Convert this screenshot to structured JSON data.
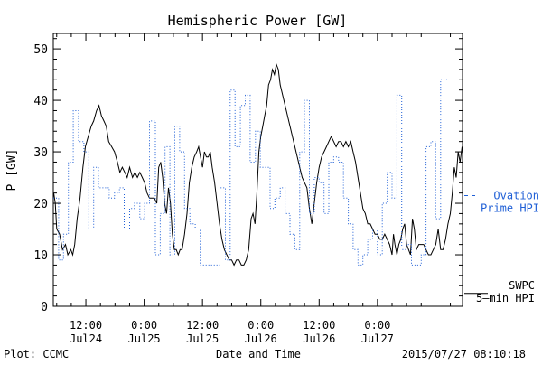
{
  "chart_data": {
    "type": "line",
    "title": "Hemispheric Power [GW]",
    "ylabel": "P [GW]",
    "xlabel": "Date and Time",
    "ylim": [
      0,
      53
    ],
    "yticks": [
      0,
      10,
      20,
      30,
      40,
      50
    ],
    "x_unit": "hours from 2015-07-24 00:00 UT",
    "xlim": [
      5.3,
      89.5
    ],
    "xticks": [
      {
        "x": 12,
        "top": "12:00",
        "bottom": "Jul24"
      },
      {
        "x": 24,
        "top": "0:00",
        "bottom": "Jul25"
      },
      {
        "x": 36,
        "top": "12:00",
        "bottom": "Jul25"
      },
      {
        "x": 48,
        "top": "0:00",
        "bottom": "Jul26"
      },
      {
        "x": 60,
        "top": "12:00",
        "bottom": "Jul26"
      },
      {
        "x": 72,
        "top": "0:00",
        "bottom": "Jul27"
      }
    ],
    "series": [
      {
        "name": "SWPC 5-min HPI",
        "legend_lines": [
          "SWPC",
          "5–min HPI"
        ],
        "color": "#000000",
        "style": "solid",
        "legend_end_value": 2.5,
        "points": [
          [
            5.4,
            22
          ],
          [
            5.7,
            20
          ],
          [
            6.0,
            15
          ],
          [
            6.6,
            14
          ],
          [
            7.2,
            11
          ],
          [
            7.8,
            12
          ],
          [
            8.3,
            10
          ],
          [
            8.9,
            11
          ],
          [
            9.3,
            10
          ],
          [
            9.7,
            12
          ],
          [
            10.2,
            17
          ],
          [
            10.8,
            21
          ],
          [
            11.4,
            27
          ],
          [
            11.9,
            31
          ],
          [
            12.5,
            33
          ],
          [
            13.1,
            35
          ],
          [
            13.6,
            36
          ],
          [
            14.2,
            38
          ],
          [
            14.7,
            39
          ],
          [
            15.2,
            37
          ],
          [
            15.7,
            36
          ],
          [
            16.2,
            35
          ],
          [
            16.7,
            32
          ],
          [
            17.3,
            31
          ],
          [
            17.9,
            30
          ],
          [
            18.5,
            28
          ],
          [
            19.0,
            26
          ],
          [
            19.5,
            27
          ],
          [
            20.0,
            26
          ],
          [
            20.5,
            25
          ],
          [
            21.0,
            27
          ],
          [
            21.6,
            25
          ],
          [
            22.1,
            26
          ],
          [
            22.6,
            25
          ],
          [
            23.1,
            26
          ],
          [
            23.6,
            25
          ],
          [
            24.1,
            24
          ],
          [
            24.6,
            22
          ],
          [
            25.1,
            21
          ],
          [
            25.6,
            21
          ],
          [
            26.1,
            21
          ],
          [
            26.6,
            20
          ],
          [
            27.0,
            27
          ],
          [
            27.4,
            28
          ],
          [
            27.8,
            25
          ],
          [
            28.2,
            20
          ],
          [
            28.6,
            18
          ],
          [
            29.0,
            23
          ],
          [
            29.4,
            20
          ],
          [
            29.8,
            14
          ],
          [
            30.2,
            11
          ],
          [
            30.6,
            11
          ],
          [
            31.0,
            10
          ],
          [
            31.4,
            11
          ],
          [
            31.8,
            11
          ],
          [
            32.3,
            14
          ],
          [
            32.8,
            18
          ],
          [
            33.3,
            24
          ],
          [
            33.8,
            27
          ],
          [
            34.3,
            29
          ],
          [
            34.8,
            30
          ],
          [
            35.2,
            31
          ],
          [
            35.6,
            29
          ],
          [
            36.0,
            27
          ],
          [
            36.4,
            30
          ],
          [
            36.8,
            29
          ],
          [
            37.2,
            29
          ],
          [
            37.6,
            30
          ],
          [
            38.0,
            27
          ],
          [
            38.5,
            24
          ],
          [
            39.0,
            20
          ],
          [
            39.5,
            16
          ],
          [
            40.0,
            13
          ],
          [
            40.5,
            11
          ],
          [
            41.0,
            10
          ],
          [
            41.5,
            9
          ],
          [
            42.0,
            9
          ],
          [
            42.5,
            8
          ],
          [
            43.0,
            9
          ],
          [
            43.5,
            9
          ],
          [
            44.0,
            8
          ],
          [
            44.5,
            8
          ],
          [
            45.0,
            9
          ],
          [
            45.5,
            11
          ],
          [
            46.0,
            17
          ],
          [
            46.4,
            18
          ],
          [
            46.8,
            16
          ],
          [
            47.2,
            22
          ],
          [
            47.6,
            30
          ],
          [
            48.0,
            33
          ],
          [
            48.4,
            35
          ],
          [
            48.8,
            37
          ],
          [
            49.2,
            39
          ],
          [
            49.6,
            43
          ],
          [
            50.0,
            44
          ],
          [
            50.4,
            46
          ],
          [
            50.8,
            45
          ],
          [
            51.2,
            47
          ],
          [
            51.6,
            46
          ],
          [
            52.0,
            43
          ],
          [
            52.5,
            41
          ],
          [
            53.0,
            39
          ],
          [
            53.5,
            37
          ],
          [
            54.0,
            35
          ],
          [
            54.5,
            33
          ],
          [
            55.0,
            31
          ],
          [
            55.5,
            29
          ],
          [
            56.0,
            27
          ],
          [
            56.5,
            25
          ],
          [
            57.0,
            24
          ],
          [
            57.5,
            23
          ],
          [
            58.0,
            19
          ],
          [
            58.5,
            16
          ],
          [
            59.0,
            20
          ],
          [
            59.5,
            24
          ],
          [
            60.0,
            27
          ],
          [
            60.5,
            29
          ],
          [
            61.0,
            30
          ],
          [
            61.5,
            31
          ],
          [
            62.0,
            32
          ],
          [
            62.5,
            33
          ],
          [
            63.0,
            32
          ],
          [
            63.5,
            31
          ],
          [
            64.0,
            32
          ],
          [
            64.5,
            32
          ],
          [
            65.0,
            31
          ],
          [
            65.5,
            32
          ],
          [
            66.0,
            31
          ],
          [
            66.5,
            32
          ],
          [
            67.0,
            30
          ],
          [
            67.5,
            28
          ],
          [
            68.0,
            25
          ],
          [
            68.5,
            22
          ],
          [
            69.0,
            19
          ],
          [
            69.5,
            18
          ],
          [
            70.0,
            16
          ],
          [
            70.5,
            16
          ],
          [
            71.0,
            15
          ],
          [
            71.5,
            14
          ],
          [
            72.0,
            14
          ],
          [
            72.5,
            13
          ],
          [
            73.0,
            13
          ],
          [
            73.5,
            14
          ],
          [
            74.0,
            13
          ],
          [
            74.5,
            12
          ],
          [
            75.0,
            10
          ],
          [
            75.3,
            14
          ],
          [
            75.6,
            12
          ],
          [
            76.0,
            10
          ],
          [
            76.4,
            12
          ],
          [
            76.8,
            13
          ],
          [
            77.2,
            15
          ],
          [
            77.6,
            16
          ],
          [
            78.0,
            12
          ],
          [
            78.4,
            11
          ],
          [
            78.8,
            10
          ],
          [
            79.2,
            17
          ],
          [
            79.6,
            15
          ],
          [
            80.0,
            11
          ],
          [
            80.5,
            12
          ],
          [
            81.0,
            12
          ],
          [
            81.5,
            12
          ],
          [
            82.0,
            11
          ],
          [
            82.5,
            10
          ],
          [
            83.0,
            10
          ],
          [
            83.5,
            11
          ],
          [
            84.0,
            12
          ],
          [
            84.5,
            15
          ],
          [
            85.0,
            11
          ],
          [
            85.5,
            11
          ],
          [
            86.0,
            13
          ],
          [
            86.5,
            16
          ],
          [
            87.0,
            18
          ],
          [
            87.4,
            22
          ],
          [
            87.8,
            27
          ],
          [
            88.2,
            25
          ],
          [
            88.6,
            30
          ],
          [
            89.0,
            28
          ],
          [
            89.4,
            31
          ]
        ]
      },
      {
        "name": "Ovation Prime HPI",
        "legend_lines": [
          "Ovation",
          "Prime HPI"
        ],
        "color": "#1f5fd6",
        "style": "dotted-step",
        "legend_end_value": 21.5,
        "steps": [
          [
            5.3,
            21
          ],
          [
            6.4,
            9
          ],
          [
            7.4,
            14
          ],
          [
            8.4,
            28
          ],
          [
            9.4,
            38
          ],
          [
            10.5,
            32
          ],
          [
            11.6,
            30
          ],
          [
            12.6,
            15
          ],
          [
            13.6,
            27
          ],
          [
            14.6,
            23
          ],
          [
            15.7,
            23
          ],
          [
            16.8,
            21
          ],
          [
            17.9,
            22
          ],
          [
            18.9,
            23
          ],
          [
            19.9,
            15
          ],
          [
            21.0,
            19
          ],
          [
            22.0,
            20
          ],
          [
            23.1,
            17
          ],
          [
            24.1,
            20
          ],
          [
            25.1,
            36
          ],
          [
            26.3,
            10
          ],
          [
            27.3,
            18
          ],
          [
            28.3,
            31
          ],
          [
            29.3,
            10
          ],
          [
            30.3,
            35
          ],
          [
            31.3,
            30
          ],
          [
            32.3,
            19
          ],
          [
            33.4,
            16
          ],
          [
            34.5,
            15
          ],
          [
            35.5,
            8
          ],
          [
            36.5,
            8
          ],
          [
            37.6,
            8
          ],
          [
            38.6,
            8
          ],
          [
            39.6,
            23
          ],
          [
            40.7,
            9
          ],
          [
            41.7,
            42
          ],
          [
            42.7,
            31
          ],
          [
            43.8,
            39
          ],
          [
            44.8,
            41
          ],
          [
            45.8,
            28
          ],
          [
            46.9,
            34
          ],
          [
            47.9,
            27
          ],
          [
            48.9,
            27
          ],
          [
            49.9,
            19
          ],
          [
            50.9,
            21
          ],
          [
            52.0,
            23
          ],
          [
            53.0,
            18
          ],
          [
            54.0,
            14
          ],
          [
            55.0,
            11
          ],
          [
            56.0,
            30
          ],
          [
            57.0,
            40
          ],
          [
            58.0,
            18
          ],
          [
            59.0,
            25
          ],
          [
            60.0,
            24
          ],
          [
            61.0,
            18
          ],
          [
            62.0,
            28
          ],
          [
            63.0,
            29
          ],
          [
            64.0,
            28
          ],
          [
            65.0,
            21
          ],
          [
            66.0,
            16
          ],
          [
            67.0,
            11
          ],
          [
            68.0,
            8
          ],
          [
            69.0,
            10
          ],
          [
            70.0,
            13
          ],
          [
            71.0,
            15
          ],
          [
            72.0,
            10
          ],
          [
            73.0,
            20
          ],
          [
            74.0,
            26
          ],
          [
            75.0,
            21
          ],
          [
            76.0,
            41
          ],
          [
            77.0,
            11
          ],
          [
            78.0,
            12
          ],
          [
            79.0,
            8
          ],
          [
            80.0,
            8
          ],
          [
            81.0,
            10
          ],
          [
            82.0,
            31
          ],
          [
            83.0,
            32
          ],
          [
            84.0,
            17
          ],
          [
            85.0,
            44
          ],
          [
            86.0,
            44
          ],
          [
            86.6,
            44
          ]
        ]
      }
    ],
    "legend_placement": "right",
    "grid": false
  },
  "footer": {
    "left": "Plot: CCMC",
    "right": "2015/07/27 08:10:18"
  }
}
